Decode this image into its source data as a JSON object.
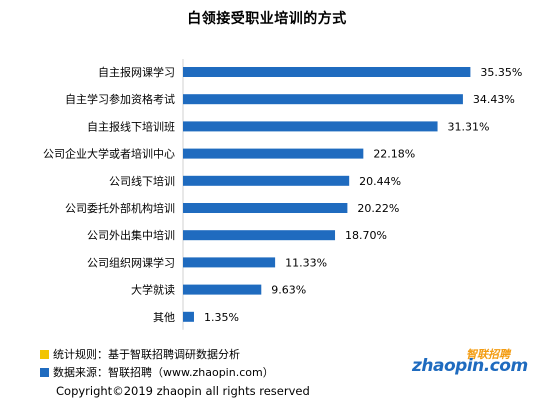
{
  "colors": {
    "bar": "#1f6bbf",
    "rule_swatch": "#f2c400",
    "source_swatch": "#1f6bbf"
  },
  "chart_data": {
    "type": "bar",
    "orientation": "horizontal",
    "title": "白领接受职业培训的方式",
    "categories": [
      "自主报网课学习",
      "自主学习参加资格考试",
      "自主报线下培训班",
      "公司企业大学或者培训中心",
      "公司线下培训",
      "公司委托外部机构培训",
      "公司外出集中培训",
      "公司组织网课学习",
      "大学就读",
      "其他"
    ],
    "values": [
      35.35,
      34.43,
      31.31,
      22.18,
      20.44,
      20.22,
      18.7,
      11.33,
      9.63,
      1.35
    ],
    "value_labels": [
      "35.35%",
      "34.43%",
      "31.31%",
      "22.18%",
      "20.44%",
      "20.22%",
      "18.70%",
      "11.33%",
      "9.63%",
      "1.35%"
    ],
    "xlim": [
      0,
      40
    ],
    "unit": "%",
    "grid": false,
    "legend": "none"
  },
  "notes": {
    "rule": "统计规则：基于智联招聘调研数据分析",
    "source": "数据来源：智联招聘（www.zhaopin.com）"
  },
  "copyright": "Copyright©2019 zhaopin all rights reserved",
  "logo": {
    "main": "zhaopin.com",
    "cn": "智联招聘"
  }
}
